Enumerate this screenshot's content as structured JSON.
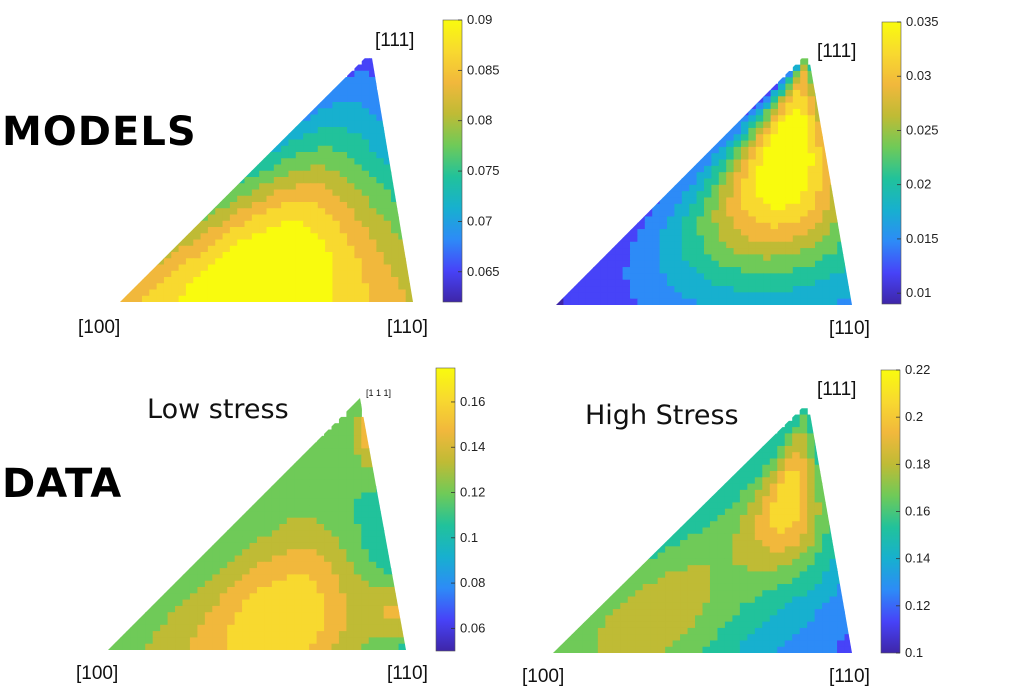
{
  "row_labels": {
    "top": "MODELS",
    "bottom": "DATA"
  },
  "colors": {
    "parula": [
      "#3e26a8",
      "#4743f8",
      "#2d8bf7",
      "#17b0cf",
      "#21c29b",
      "#6fca58",
      "#bfbb35",
      "#f1b83c",
      "#f8d92f",
      "#f9fb0e"
    ],
    "contour_line": "#1a1a1a"
  },
  "chart_data": [
    {
      "type": "heatmap",
      "id": "models-left",
      "title": "",
      "corner_labels": {
        "left": "[100]",
        "right": "[110]",
        "top": "[111]"
      },
      "colorbar": {
        "min": 0.062,
        "max": 0.09,
        "ticks": [
          "0.065",
          "0.07",
          "0.075",
          "0.08",
          "0.085",
          "0.09"
        ]
      },
      "field": {
        "base": 0.078,
        "hotspots": [
          {
            "u": 0.46,
            "v": 0.08,
            "value": 0.091,
            "r": 0.33
          }
        ],
        "gradients": [
          {
            "to": "top",
            "value": 0.062,
            "strength": 0.75
          }
        ]
      }
    },
    {
      "type": "heatmap",
      "id": "models-right",
      "title": "",
      "corner_labels": {
        "right": "[110]",
        "top": "[111]"
      },
      "colorbar": {
        "min": 0.009,
        "max": 0.035,
        "ticks": [
          "0.01",
          "0.015",
          "0.02",
          "0.025",
          "0.03",
          "0.035"
        ]
      },
      "field": {
        "base": 0.012,
        "hotspots": [
          {
            "u": 0.68,
            "v": 0.58,
            "value": 0.036,
            "r": 0.35
          }
        ],
        "gradients": [
          {
            "to": "left",
            "value": 0.009,
            "strength": 0.5
          }
        ]
      }
    },
    {
      "type": "heatmap",
      "id": "data-low",
      "title": "Low stress",
      "corner_labels": {
        "left": "[100]",
        "right": "[110]",
        "top": "[1 1 1]"
      },
      "colorbar": {
        "min": 0.05,
        "max": 0.175,
        "ticks": [
          "0.06",
          "0.08",
          "0.1",
          "0.12",
          "0.14",
          "0.16"
        ]
      },
      "field": {
        "base": 0.115,
        "hotspots": [
          {
            "u": 0.55,
            "v": 0.12,
            "value": 0.162,
            "r": 0.25
          },
          {
            "u": 0.95,
            "v": 0.9,
            "value": 0.145,
            "r": 0.15
          },
          {
            "u": 0.97,
            "v": 0.15,
            "value": 0.14,
            "r": 0.1
          }
        ],
        "gradients": [
          {
            "to": "right-bottom",
            "value": 0.055,
            "strength": 0.6
          }
        ]
      }
    },
    {
      "type": "heatmap",
      "id": "data-high",
      "title": "High Stress",
      "corner_labels": {
        "left": "[100]",
        "right": "[110]",
        "top": "[111]"
      },
      "colorbar": {
        "min": 0.1,
        "max": 0.22,
        "ticks": [
          "0.1",
          "0.12",
          "0.14",
          "0.16",
          "0.18",
          "0.2",
          "0.22"
        ]
      },
      "field": {
        "base": 0.15,
        "hotspots": [
          {
            "u": 0.68,
            "v": 0.6,
            "value": 0.205,
            "r": 0.22
          },
          {
            "u": 0.25,
            "v": 0.15,
            "value": 0.18,
            "r": 0.22
          }
        ],
        "gradients": [
          {
            "to": "right-bottom",
            "value": 0.105,
            "strength": 0.65
          }
        ]
      }
    }
  ]
}
